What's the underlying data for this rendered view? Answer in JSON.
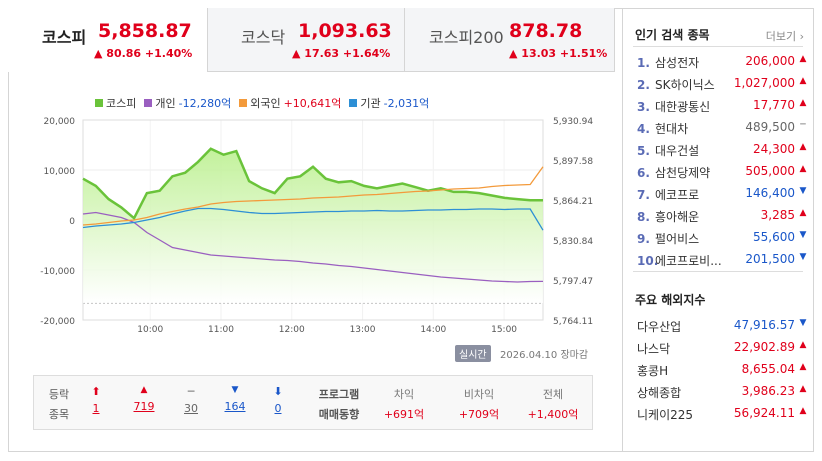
{
  "tabs": [
    {
      "name": "코스피",
      "value": "5,858.87",
      "change": "80.86 +1.40%",
      "active": true
    },
    {
      "name": "코스닥",
      "value": "1,093.63",
      "change": "17.63 +1.64%",
      "active": false
    },
    {
      "name": "코스피200",
      "value": "878.78",
      "change": "13.03 +1.51%",
      "active": false
    }
  ],
  "legend": [
    {
      "label": "코스피",
      "value": "",
      "color": "#6ac33a"
    },
    {
      "label": "개인",
      "value": "-12,280억",
      "color": "#9a5fc0"
    },
    {
      "label": "외국인",
      "value": "+10,641억",
      "color": "#f39a3b"
    },
    {
      "label": "기관",
      "value": "-2,031억",
      "color": "#2d8fd5"
    }
  ],
  "chart_data": {
    "type": "line",
    "x_ticks": [
      "10:00",
      "11:00",
      "12:00",
      "13:00",
      "14:00",
      "15:00"
    ],
    "y_left_ticks": [
      "20,000",
      "10,000",
      "0",
      "-10,000",
      "-20,000"
    ],
    "y_right_ticks": [
      "5,930.94",
      "5,897.58",
      "5,864.21",
      "5,830.84",
      "5,797.47",
      "5,764.11"
    ],
    "ylim_left": [
      -20000,
      20000
    ],
    "ylim_right": [
      5764.11,
      5930.94
    ],
    "series": [
      {
        "name": "코스피",
        "axis": "right",
        "color": "#6ac33a",
        "values": [
          5882,
          5876,
          5865,
          5858,
          5849,
          5870,
          5872,
          5884,
          5887,
          5896,
          5907,
          5902,
          5905,
          5880,
          5874,
          5870,
          5882,
          5884,
          5892,
          5882,
          5879,
          5880,
          5876,
          5874,
          5876,
          5878,
          5875,
          5872,
          5874,
          5871,
          5871,
          5870,
          5868,
          5866,
          5865,
          5864,
          5864
        ]
      },
      {
        "name": "개인",
        "axis": "left",
        "color": "#9a5fc0",
        "values": [
          1200,
          1500,
          1000,
          500,
          -500,
          -2500,
          -4000,
          -5500,
          -6000,
          -6500,
          -7000,
          -7200,
          -7400,
          -7600,
          -7800,
          -8000,
          -8100,
          -8300,
          -8600,
          -8800,
          -9100,
          -9300,
          -9600,
          -9900,
          -10200,
          -10500,
          -10800,
          -11100,
          -11400,
          -11600,
          -11800,
          -12000,
          -12200,
          -12300,
          -12400,
          -12300,
          -12280
        ]
      },
      {
        "name": "외국인",
        "axis": "left",
        "color": "#f39a3b",
        "values": [
          -1000,
          -800,
          -500,
          -200,
          0,
          500,
          1200,
          1700,
          2200,
          2600,
          3200,
          3500,
          3700,
          3800,
          3900,
          4000,
          4100,
          4200,
          4400,
          4500,
          4600,
          4800,
          5000,
          5100,
          5300,
          5500,
          5700,
          5800,
          6000,
          6200,
          6300,
          6400,
          6700,
          6900,
          7000,
          7100,
          10641
        ]
      },
      {
        "name": "기관",
        "axis": "left",
        "color": "#2d8fd5",
        "values": [
          -1500,
          -1200,
          -1000,
          -800,
          -500,
          0,
          500,
          1200,
          1800,
          2300,
          2300,
          2100,
          1800,
          1500,
          1300,
          1300,
          1400,
          1500,
          1600,
          1700,
          1700,
          1800,
          1800,
          1900,
          1800,
          1800,
          1900,
          2000,
          2000,
          2100,
          2100,
          2200,
          2200,
          2100,
          2200,
          2200,
          -2031
        ]
      }
    ]
  },
  "status": {
    "badge": "실시간",
    "date": "2026.04.10",
    "closed": "장마감"
  },
  "stats": {
    "label1": "등락",
    "label2": "종목",
    "cols": [
      {
        "icon": "⬆",
        "value": "1",
        "cls": "up"
      },
      {
        "icon": "▲",
        "value": "719",
        "cls": "up"
      },
      {
        "icon": "─",
        "value": "30",
        "cls": "flat"
      },
      {
        "icon": "▼",
        "value": "164",
        "cls": "down"
      },
      {
        "icon": "⬇",
        "value": "0",
        "cls": "down"
      }
    ],
    "program_label1": "프로그램",
    "program_label2": "매매동향",
    "program": [
      {
        "label": "차익",
        "value": "+691억"
      },
      {
        "label": "비차익",
        "value": "+709억"
      },
      {
        "label": "전체",
        "value": "+1,400억"
      }
    ]
  },
  "side": {
    "popular_title": "인기 검색 종목",
    "more": "더보기",
    "popular": [
      {
        "no": "1.",
        "name": "삼성전자",
        "price": "206,000",
        "dir": "up"
      },
      {
        "no": "2.",
        "name": "SK하이닉스",
        "price": "1,027,000",
        "dir": "up"
      },
      {
        "no": "3.",
        "name": "대한광통신",
        "price": "17,770",
        "dir": "up"
      },
      {
        "no": "4.",
        "name": "현대차",
        "price": "489,500",
        "dir": "flat"
      },
      {
        "no": "5.",
        "name": "대우건설",
        "price": "24,300",
        "dir": "up"
      },
      {
        "no": "6.",
        "name": "삼천당제약",
        "price": "505,000",
        "dir": "up"
      },
      {
        "no": "7.",
        "name": "에코프로",
        "price": "146,400",
        "dir": "down"
      },
      {
        "no": "8.",
        "name": "흥아해운",
        "price": "3,285",
        "dir": "up"
      },
      {
        "no": "9.",
        "name": "펄어비스",
        "price": "55,600",
        "dir": "down"
      },
      {
        "no": "10.",
        "name": "에코프로비...",
        "price": "201,500",
        "dir": "down"
      }
    ],
    "world_title": "주요 해외지수",
    "world": [
      {
        "name": "다우산업",
        "price": "47,916.57",
        "dir": "down"
      },
      {
        "name": "나스닥",
        "price": "22,902.89",
        "dir": "up"
      },
      {
        "name": "홍콩H",
        "price": "8,655.04",
        "dir": "up"
      },
      {
        "name": "상해종합",
        "price": "3,986.23",
        "dir": "up"
      },
      {
        "name": "니케이225",
        "price": "56,924.11",
        "dir": "up"
      }
    ]
  }
}
